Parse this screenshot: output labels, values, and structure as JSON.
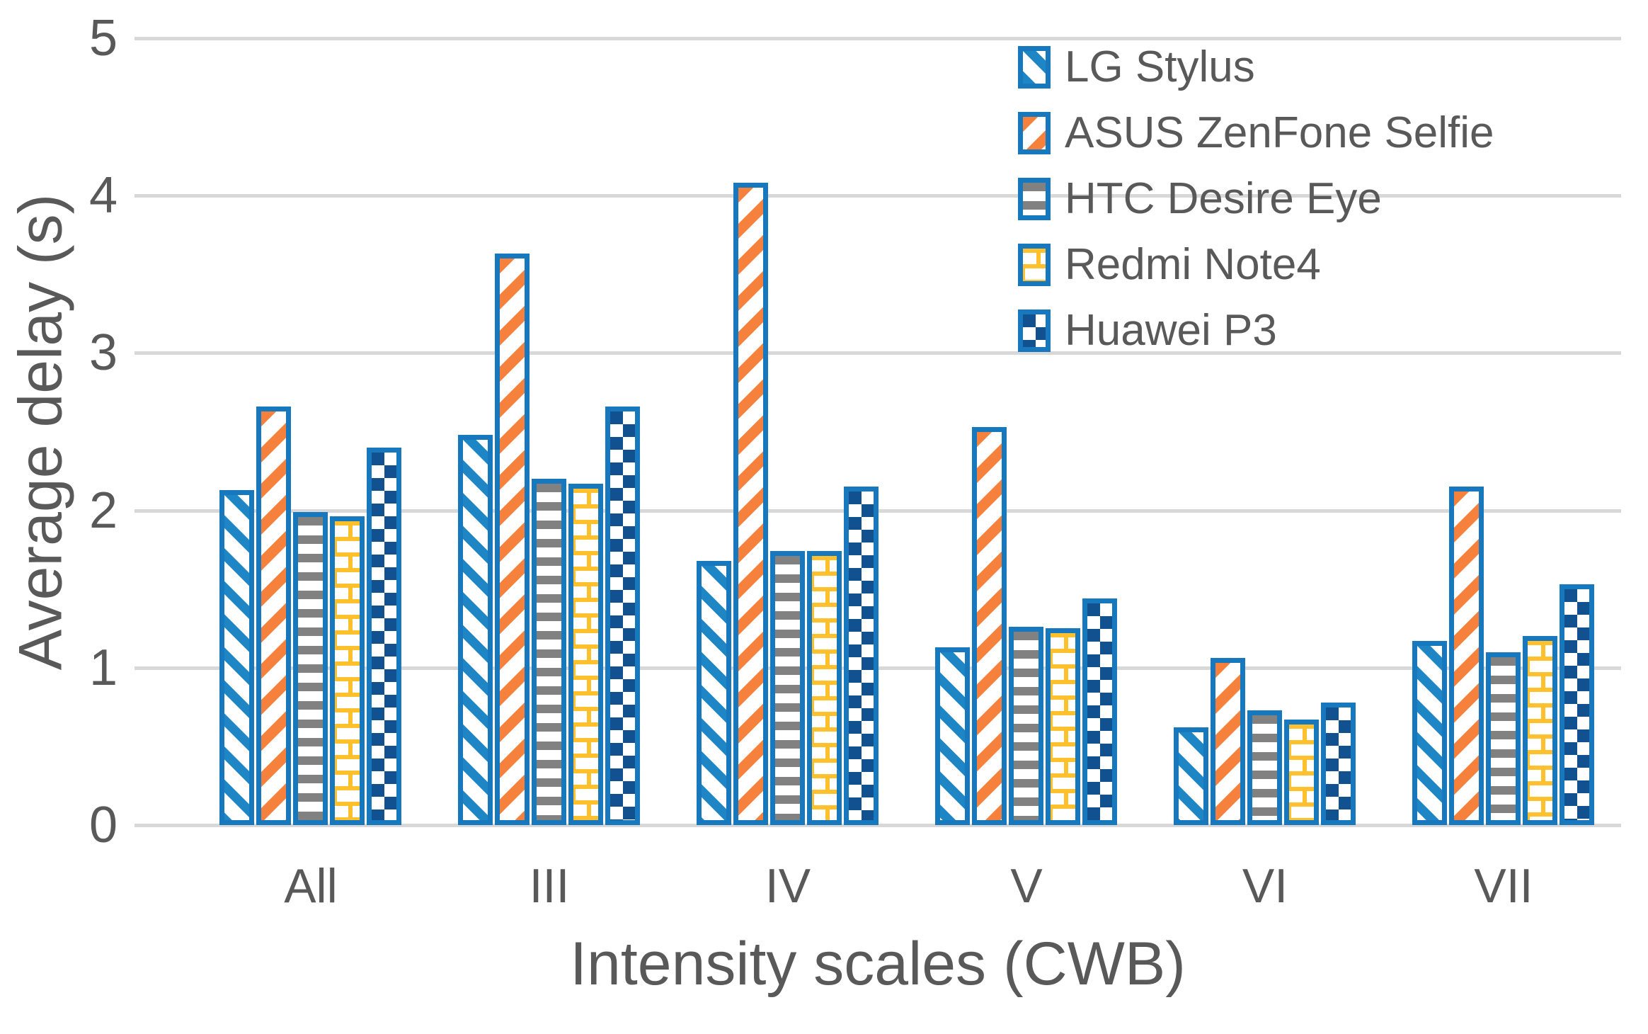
{
  "figure": {
    "y_axis": {
      "title": "Average delay (s)",
      "tick_labels": [
        "5",
        "4",
        "3",
        "2",
        "1",
        "0"
      ]
    },
    "x_axis": {
      "title": "Intensity scales (CWB)",
      "tick_labels": [
        "All",
        "III",
        "IV",
        "V",
        "VI",
        "VII"
      ]
    },
    "legend_items": [
      "LG Stylus",
      "ASUS ZenFone Selfie",
      "HTC Desire Eye",
      "Redmi Note4",
      "Huawei P3"
    ]
  },
  "chart_data": {
    "type": "bar",
    "title": "",
    "xlabel": "Intensity scales (CWB)",
    "ylabel": "Average delay (s)",
    "categories": [
      "All",
      "III",
      "IV",
      "V",
      "VI",
      "VII"
    ],
    "series": [
      {
        "name": "LG Stylus",
        "pattern": "diagonal-down",
        "color": "#1e86c4",
        "values": [
          2.13,
          2.48,
          1.68,
          1.13,
          0.62,
          1.17
        ]
      },
      {
        "name": "ASUS ZenFone Selfie",
        "pattern": "diagonal-up",
        "color": "#f5813c",
        "values": [
          2.66,
          3.63,
          4.08,
          2.53,
          1.06,
          2.15
        ]
      },
      {
        "name": "HTC Desire Eye",
        "pattern": "horizontal-stripes",
        "color": "#818181",
        "values": [
          1.99,
          2.2,
          1.74,
          1.26,
          0.73,
          1.1
        ]
      },
      {
        "name": "Redmi Note4",
        "pattern": "brick",
        "color": "#ffc02e",
        "values": [
          1.96,
          2.17,
          1.74,
          1.25,
          0.67,
          1.2
        ]
      },
      {
        "name": "Huawei P3",
        "pattern": "checker",
        "color": "#11518f",
        "values": [
          2.4,
          2.66,
          2.15,
          1.44,
          0.78,
          1.53
        ]
      }
    ],
    "ylim": [
      0,
      5
    ],
    "yticks": [
      0,
      1,
      2,
      3,
      4,
      5
    ],
    "grid": "horizontal",
    "legend_position": "top-right",
    "bar_outline_color": "#1878be",
    "gridline_color": "#d8d8d8",
    "text_color": "#595959"
  }
}
